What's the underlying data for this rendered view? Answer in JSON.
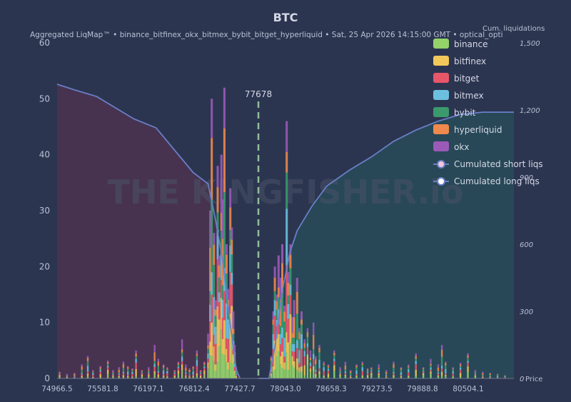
{
  "colors": {
    "background": "#2c3550",
    "axis_text": "#b9c0d4",
    "short_zone": "#4a3350",
    "long_zone": "#284a58",
    "cum_line": "#6a7fc8",
    "current_price_line": "#8fbf9a"
  },
  "chart_data": {
    "type": "bar",
    "title": "BTC",
    "subtitle": "Aggregated LiqMap™  •  binance_bitfinex_okx_bitmex_bybit_bitget_hyperliquid  •  Sat, 25 Apr 2026 14:15:00 GMT  •  optical_opti",
    "watermark": "THE KINGFISHER.io",
    "xlabel": "Price",
    "ylabel_right": "Cum. liquidations",
    "x_range": [
      74966.5,
      81120
    ],
    "ylim": [
      0,
      60
    ],
    "ylim_right": [
      0,
      1500
    ],
    "x_ticks": [
      74966.5,
      75581.8,
      76197.1,
      76812.4,
      77427.7,
      78043.0,
      78658.3,
      79273.5,
      79888.8,
      80504.1
    ],
    "y_ticks": [
      0,
      10,
      20,
      30,
      40,
      50,
      60
    ],
    "y_ticks_right": [
      0,
      300,
      600,
      900,
      1200,
      1500
    ],
    "current_price": 77678,
    "current_price_label": "77678",
    "legend_position": "top-right",
    "series": [
      {
        "name": "binance",
        "color": "#93d36a"
      },
      {
        "name": "bitfinex",
        "color": "#f2c85a"
      },
      {
        "name": "bitget",
        "color": "#e8566a"
      },
      {
        "name": "bitmex",
        "color": "#6cc0df"
      },
      {
        "name": "bybit",
        "color": "#3a9a6c"
      },
      {
        "name": "hyperliquid",
        "color": "#f0894e"
      },
      {
        "name": "okx",
        "color": "#9b5ab8"
      }
    ],
    "bars": [
      [
        75000,
        1.2
      ],
      [
        75100,
        0.8
      ],
      [
        75200,
        1.0
      ],
      [
        75300,
        2.5
      ],
      [
        75380,
        4.0
      ],
      [
        75450,
        1.5
      ],
      [
        75550,
        2.2
      ],
      [
        75650,
        3.2
      ],
      [
        75720,
        1.5
      ],
      [
        75800,
        2.0
      ],
      [
        75860,
        3.0
      ],
      [
        75920,
        2.2
      ],
      [
        75980,
        1.8
      ],
      [
        76030,
        5.0
      ],
      [
        76110,
        1.5
      ],
      [
        76200,
        2.0
      ],
      [
        76280,
        6.0
      ],
      [
        76330,
        3.5
      ],
      [
        76400,
        2.5
      ],
      [
        76450,
        2.0
      ],
      [
        76550,
        1.5
      ],
      [
        76600,
        3.0
      ],
      [
        76650,
        7.0
      ],
      [
        76700,
        2.5
      ],
      [
        76750,
        1.8
      ],
      [
        76800,
        2.2
      ],
      [
        76850,
        5.0
      ],
      [
        76900,
        1.5
      ],
      [
        76950,
        3.0
      ],
      [
        77000,
        8.0
      ],
      [
        77030,
        30.0
      ],
      [
        77050,
        50.0
      ],
      [
        77080,
        26.0
      ],
      [
        77100,
        14.0
      ],
      [
        77130,
        38.0
      ],
      [
        77150,
        22.0
      ],
      [
        77180,
        40.0
      ],
      [
        77200,
        32.0
      ],
      [
        77220,
        52.0
      ],
      [
        77250,
        24.0
      ],
      [
        77270,
        16.0
      ],
      [
        77300,
        34.0
      ],
      [
        77320,
        27.0
      ],
      [
        77340,
        12.0
      ],
      [
        77360,
        6.0
      ],
      [
        77380,
        2.0
      ],
      [
        77850,
        4.0
      ],
      [
        77880,
        12.0
      ],
      [
        77900,
        20.0
      ],
      [
        77930,
        15.0
      ],
      [
        77950,
        22.0
      ],
      [
        77980,
        18.0
      ],
      [
        78000,
        24.0
      ],
      [
        78030,
        13.0
      ],
      [
        78060,
        46.0
      ],
      [
        78080,
        19.0
      ],
      [
        78110,
        24.0
      ],
      [
        78140,
        11.0
      ],
      [
        78160,
        14.0
      ],
      [
        78200,
        18.0
      ],
      [
        78230,
        9.0
      ],
      [
        78260,
        12.0
      ],
      [
        78300,
        7.0
      ],
      [
        78340,
        9.0
      ],
      [
        78380,
        5.0
      ],
      [
        78420,
        10.0
      ],
      [
        78450,
        4.0
      ],
      [
        78500,
        6.0
      ],
      [
        78560,
        3.0
      ],
      [
        78620,
        2.5
      ],
      [
        78700,
        5.0
      ],
      [
        78780,
        2.0
      ],
      [
        78850,
        3.0
      ],
      [
        78920,
        1.5
      ],
      [
        79000,
        2.5
      ],
      [
        79080,
        3.0
      ],
      [
        79150,
        1.8
      ],
      [
        79200,
        2.0
      ],
      [
        79300,
        2.5
      ],
      [
        79400,
        1.5
      ],
      [
        79500,
        3.0
      ],
      [
        79600,
        2.0
      ],
      [
        79700,
        2.5
      ],
      [
        79800,
        4.5
      ],
      [
        79900,
        2.0
      ],
      [
        80000,
        3.5
      ],
      [
        80100,
        2.5
      ],
      [
        80150,
        6.0
      ],
      [
        80200,
        3.0
      ],
      [
        80300,
        2.0
      ],
      [
        80400,
        2.8
      ],
      [
        80500,
        4.5
      ],
      [
        80600,
        1.5
      ],
      [
        80700,
        1.2
      ],
      [
        80800,
        1.0
      ],
      [
        80900,
        0.8
      ],
      [
        81000,
        0.6
      ]
    ],
    "cum_short": [
      [
        74966.5,
        1315
      ],
      [
        75200,
        1290
      ],
      [
        75500,
        1260
      ],
      [
        75800,
        1200
      ],
      [
        76000,
        1160
      ],
      [
        76300,
        1120
      ],
      [
        76550,
        1020
      ],
      [
        76800,
        920
      ],
      [
        77000,
        870
      ],
      [
        77100,
        710
      ],
      [
        77200,
        520
      ],
      [
        77300,
        240
      ],
      [
        77380,
        40
      ],
      [
        77430,
        0
      ]
    ],
    "cum_long": [
      [
        77680,
        0
      ],
      [
        77820,
        0
      ],
      [
        77900,
        140
      ],
      [
        78000,
        390
      ],
      [
        78100,
        560
      ],
      [
        78200,
        660
      ],
      [
        78400,
        770
      ],
      [
        78600,
        860
      ],
      [
        78900,
        930
      ],
      [
        79200,
        990
      ],
      [
        79500,
        1060
      ],
      [
        79800,
        1110
      ],
      [
        80100,
        1150
      ],
      [
        80400,
        1180
      ],
      [
        80700,
        1190
      ],
      [
        81120,
        1190
      ]
    ],
    "legend_extra": [
      {
        "name": "Cumulated short liqs"
      },
      {
        "name": "Cumulated long liqs"
      }
    ]
  }
}
